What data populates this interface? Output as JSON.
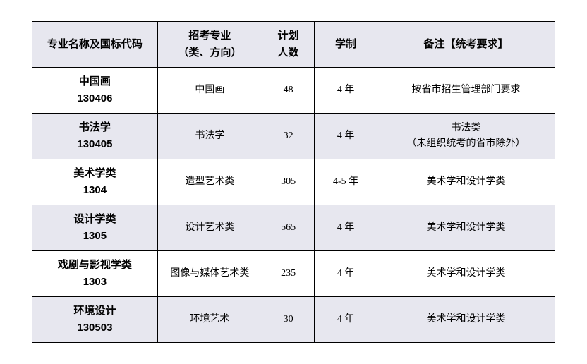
{
  "table": {
    "header_bg": "#e7e7ef",
    "row_odd_bg": "#e7e7ef",
    "row_even_bg": "#ffffff",
    "border_color": "#000000",
    "header_fontsize": 15,
    "cell_fontsize": 14,
    "columns": [
      {
        "label": "专业名称及国标代码",
        "width_pct": 24
      },
      {
        "label_line1": "招考专业",
        "label_line2": "（类、方向）",
        "width_pct": 20
      },
      {
        "label_line1": "计划",
        "label_line2": "人数",
        "width_pct": 10
      },
      {
        "label": "学制",
        "width_pct": 12
      },
      {
        "label": "备注【统考要求】",
        "width_pct": 34
      }
    ],
    "rows": [
      {
        "name": "中国画",
        "code": "130406",
        "major": "中国画",
        "plan": "48",
        "duration": "4 年",
        "notes_line1": "按省市招生管理部门要求",
        "notes_line2": ""
      },
      {
        "name": "书法学",
        "code": "130405",
        "major": "书法学",
        "plan": "32",
        "duration": "4 年",
        "notes_line1": "书法类",
        "notes_line2": "（未组织统考的省市除外）"
      },
      {
        "name": "美术学类",
        "code": "1304",
        "major": "造型艺术类",
        "plan": "305",
        "duration": "4-5 年",
        "notes_line1": "美术学和设计学类",
        "notes_line2": ""
      },
      {
        "name": "设计学类",
        "code": "1305",
        "major": "设计艺术类",
        "plan": "565",
        "duration": "4 年",
        "notes_line1": "美术学和设计学类",
        "notes_line2": ""
      },
      {
        "name": "戏剧与影视学类",
        "code": "1303",
        "major": "图像与媒体艺术类",
        "plan": "235",
        "duration": "4 年",
        "notes_line1": "美术学和设计学类",
        "notes_line2": ""
      },
      {
        "name": "环境设计",
        "code": "130503",
        "major": "环境艺术",
        "plan": "30",
        "duration": "4 年",
        "notes_line1": "美术学和设计学类",
        "notes_line2": ""
      }
    ]
  }
}
